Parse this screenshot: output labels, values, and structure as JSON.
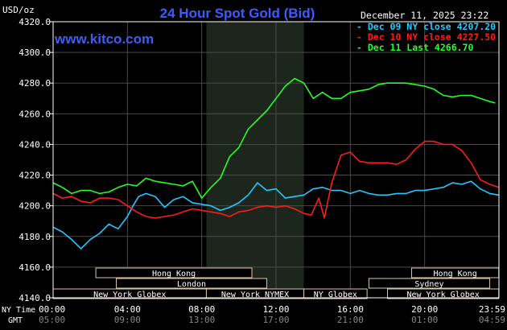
{
  "chart_data": {
    "type": "line",
    "title": "24 Hour Spot Gold (Bid)",
    "site": "www.kitco.com",
    "date_label": "December 11, 2025 23:22",
    "ylabel": "USD/oz",
    "ylim": [
      4140,
      4320
    ],
    "yticks": [
      "4320.0",
      "4300.0",
      "4280.0",
      "4260.0",
      "4240.0",
      "4220.0",
      "4200.0",
      "4180.0",
      "4160.0",
      "4140.0"
    ],
    "xlim": [
      0,
      24
    ],
    "x_ticks_ny": [
      "00:00",
      "04:00",
      "08:00",
      "12:00",
      "16:00",
      "20:00",
      "23:59"
    ],
    "x_ticks_gmt": [
      "05:00",
      "09:00",
      "13:00",
      "17:00",
      "21:00",
      "01:00",
      "04:59"
    ],
    "row_label_ny": "NY Time",
    "row_label_gmt": "GMT",
    "grid": true,
    "legend_position": "top-right",
    "colors": {
      "bg": "#000000",
      "grid": "#4a4a4a",
      "axis": "#ffffff",
      "title": "#3d5cff",
      "site": "#3d5cff",
      "shade": "#1d261d"
    },
    "shaded_hours": [
      8.25,
      13.5
    ],
    "legend": [
      {
        "label": "Dec 09 NY close 4207.20",
        "color": "#22c8ff"
      },
      {
        "label": "Dec 10 NY close 4227.50",
        "color": "#ff1a1a"
      },
      {
        "label": "Dec 11 Last 4266.70",
        "color": "#22ff22"
      }
    ],
    "sessions": [
      {
        "name": "Hong Kong",
        "start": 2.3,
        "end": 10.7,
        "row": 0
      },
      {
        "name": "Hong Kong",
        "start": 19.3,
        "end": 23.99,
        "row": 0
      },
      {
        "name": "London",
        "start": 3.4,
        "end": 11.5,
        "row": 1
      },
      {
        "name": "Sydney",
        "start": 17.0,
        "end": 23.5,
        "row": 1
      },
      {
        "name": "New York Globex",
        "start": 0,
        "end": 8.25,
        "row": 2
      },
      {
        "name": "New York NYMEX",
        "start": 8.25,
        "end": 13.5,
        "row": 2
      },
      {
        "name": "NY Globex",
        "start": 13.5,
        "end": 16.9,
        "row": 2
      },
      {
        "name": "New York Globex",
        "start": 18.0,
        "end": 23.99,
        "row": 2
      }
    ],
    "series": [
      {
        "name": "Dec 09",
        "color": "#22c8ff",
        "x": [
          0,
          0.5,
          1.0,
          1.5,
          2.0,
          2.5,
          3.0,
          3.5,
          4.0,
          4.3,
          4.6,
          5.0,
          5.5,
          6.0,
          6.5,
          7.0,
          7.5,
          8.0,
          8.5,
          9.0,
          9.5,
          10.0,
          10.5,
          11.0,
          11.5,
          12.0,
          12.5,
          13.0,
          13.5,
          14.0,
          14.5,
          15.0,
          15.5,
          16.0,
          16.5,
          17.0,
          17.5,
          18.0,
          18.5,
          19.0,
          19.5,
          20.0,
          20.5,
          21.0,
          21.5,
          22.0,
          22.5,
          23.0,
          23.5,
          23.99
        ],
        "y": [
          4186,
          4183,
          4178,
          4172,
          4178,
          4182,
          4188,
          4185,
          4193,
          4200,
          4206,
          4208,
          4206,
          4199,
          4204,
          4206,
          4202,
          4201,
          4200,
          4197,
          4199,
          4202,
          4207,
          4215,
          4210,
          4211,
          4205,
          4206,
          4207,
          4211,
          4212,
          4210,
          4210,
          4208,
          4210,
          4208,
          4207,
          4207,
          4208,
          4208,
          4210,
          4210,
          4211,
          4212,
          4215,
          4214,
          4216,
          4211,
          4208,
          4207
        ]
      },
      {
        "name": "Dec 10",
        "color": "#ff1a1a",
        "x": [
          0,
          0.5,
          1.0,
          1.5,
          2.0,
          2.5,
          3.0,
          3.5,
          4.0,
          4.5,
          5.0,
          5.5,
          6.0,
          6.5,
          7.0,
          7.5,
          8.0,
          8.5,
          9.0,
          9.5,
          10.0,
          10.5,
          11.0,
          11.5,
          12.0,
          12.5,
          13.0,
          13.5,
          13.9,
          14.3,
          14.6,
          15.0,
          15.5,
          16.0,
          16.5,
          17.0,
          17.5,
          18.0,
          18.5,
          19.0,
          19.5,
          20.0,
          20.5,
          21.0,
          21.5,
          22.0,
          22.5,
          23.0,
          23.5,
          23.99
        ],
        "y": [
          4208,
          4205,
          4206,
          4203,
          4202,
          4205,
          4205,
          4204,
          4200,
          4196,
          4193,
          4192,
          4193,
          4194,
          4196,
          4198,
          4197,
          4196,
          4195,
          4193,
          4196,
          4197,
          4199,
          4200,
          4199,
          4200,
          4198,
          4195,
          4194,
          4205,
          4192,
          4215,
          4233,
          4235,
          4229,
          4228,
          4228,
          4228,
          4227,
          4230,
          4237,
          4242,
          4242,
          4240,
          4240,
          4236,
          4228,
          4217,
          4214,
          4212
        ]
      },
      {
        "name": "Dec 11",
        "color": "#22ff22",
        "x": [
          0,
          0.5,
          1.0,
          1.5,
          2.0,
          2.5,
          3.0,
          3.5,
          4.0,
          4.5,
          5.0,
          5.5,
          6.0,
          6.5,
          7.0,
          7.5,
          8.0,
          8.5,
          9.0,
          9.5,
          10.0,
          10.5,
          11.0,
          11.5,
          12.0,
          12.5,
          13.0,
          13.5,
          14.0,
          14.5,
          15.0,
          15.5,
          16.0,
          16.5,
          17.0,
          17.5,
          18.0,
          18.5,
          19.0,
          19.5,
          20.0,
          20.5,
          21.0,
          21.5,
          22.0,
          22.5,
          23.0,
          23.5,
          23.8
        ],
        "y": [
          4215,
          4212,
          4208,
          4210,
          4210,
          4208,
          4209,
          4212,
          4214,
          4213,
          4218,
          4216,
          4215,
          4214,
          4213,
          4216,
          4205,
          4212,
          4218,
          4232,
          4238,
          4250,
          4256,
          4262,
          4270,
          4278,
          4283,
          4280,
          4270,
          4274,
          4270,
          4270,
          4274,
          4275,
          4276,
          4279,
          4280,
          4280,
          4280,
          4279,
          4278,
          4276,
          4272,
          4271,
          4272,
          4272,
          4270,
          4268,
          4267
        ]
      }
    ]
  }
}
